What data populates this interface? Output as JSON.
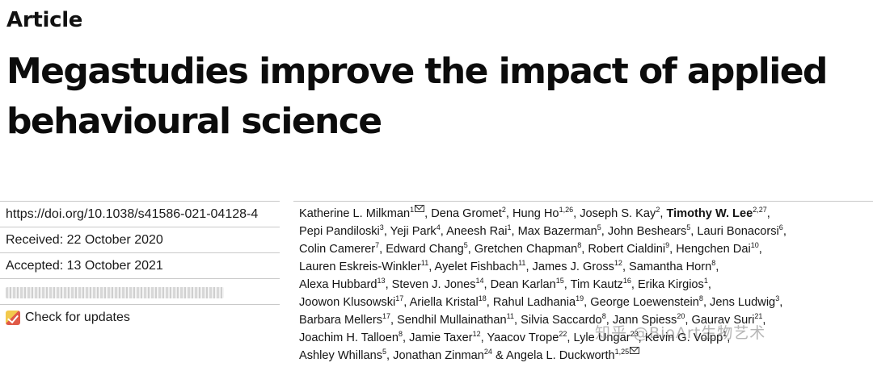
{
  "header": {
    "article_label": "Article",
    "title_line1": "Megastudies improve the impact of applied",
    "title_line2": "behavioural science"
  },
  "meta": {
    "doi": "https://doi.org/10.1038/s41586-021-04128-4",
    "received": "Received: 22 October 2020",
    "accepted": "Accepted: 13 October 2021",
    "check_updates": "Check for updates"
  },
  "watermark": "知乎 @BioArt生物艺术",
  "authors": [
    [
      {
        "n": "Katherine L. Milkman",
        "s": "1",
        "mail": true
      },
      {
        "n": "Dena Gromet",
        "s": "2"
      },
      {
        "n": "Hung Ho",
        "s": "1,26"
      },
      {
        "n": "Joseph S. Kay",
        "s": "2"
      },
      {
        "n": "Timothy W. Lee",
        "s": "2,27"
      }
    ],
    [
      {
        "n": "Pepi Pandiloski",
        "s": "3"
      },
      {
        "n": "Yeji Park",
        "s": "4"
      },
      {
        "n": "Aneesh Rai",
        "s": "1"
      },
      {
        "n": "Max Bazerman",
        "s": "5"
      },
      {
        "n": "John Beshears",
        "s": "5"
      },
      {
        "n": "Lauri Bonacorsi",
        "s": "6"
      }
    ],
    [
      {
        "n": "Colin Camerer",
        "s": "7"
      },
      {
        "n": "Edward Chang",
        "s": "5"
      },
      {
        "n": "Gretchen Chapman",
        "s": "8"
      },
      {
        "n": "Robert Cialdini",
        "s": "9"
      },
      {
        "n": "Hengchen Dai",
        "s": "10"
      }
    ],
    [
      {
        "n": "Lauren Eskreis-Winkler",
        "s": "11"
      },
      {
        "n": "Ayelet Fishbach",
        "s": "11"
      },
      {
        "n": "James J. Gross",
        "s": "12"
      },
      {
        "n": "Samantha Horn",
        "s": "8"
      }
    ],
    [
      {
        "n": "Alexa Hubbard",
        "s": "13"
      },
      {
        "n": "Steven J. Jones",
        "s": "14"
      },
      {
        "n": "Dean Karlan",
        "s": "15"
      },
      {
        "n": "Tim Kautz",
        "s": "16"
      },
      {
        "n": "Erika Kirgios",
        "s": "1"
      }
    ],
    [
      {
        "n": "Joowon Klusowski",
        "s": "17"
      },
      {
        "n": "Ariella Kristal",
        "s": "18"
      },
      {
        "n": "Rahul Ladhania",
        "s": "19"
      },
      {
        "n": "George Loewenstein",
        "s": "8"
      },
      {
        "n": "Jens Ludwig",
        "s": "3"
      }
    ],
    [
      {
        "n": "Barbara Mellers",
        "s": "17"
      },
      {
        "n": "Sendhil Mullainathan",
        "s": "11"
      },
      {
        "n": "Silvia Saccardo",
        "s": "8"
      },
      {
        "n": "Jann Spiess",
        "s": "20"
      },
      {
        "n": "Gaurav Suri",
        "s": "21"
      }
    ],
    [
      {
        "n": "Joachim H. Talloen",
        "s": "8"
      },
      {
        "n": "Jamie Taxer",
        "s": "12"
      },
      {
        "n": "Yaacov Trope",
        "s": "22"
      },
      {
        "n": "Lyle Ungar",
        "s": "23"
      },
      {
        "n": "Kevin G. Volpp",
        "s": "1"
      }
    ],
    [
      {
        "n": "Ashley Whillans",
        "s": "5"
      },
      {
        "n": "Jonathan Zinman",
        "s": "24"
      },
      {
        "n": "Angela L. Duckworth",
        "s": "1,25",
        "mail": true,
        "amp": true
      }
    ]
  ]
}
